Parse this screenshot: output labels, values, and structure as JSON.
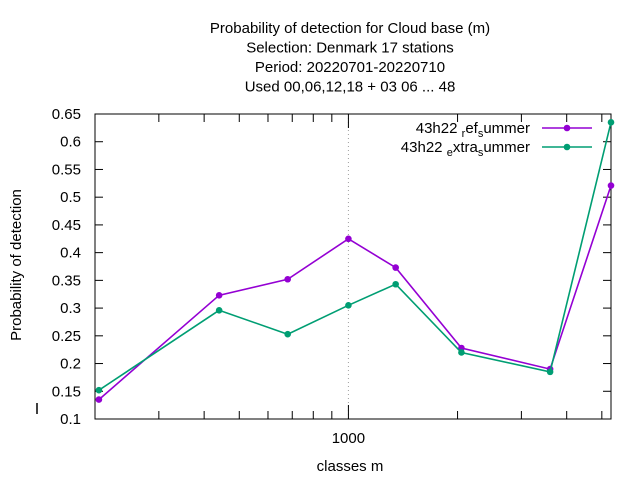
{
  "chart_data": {
    "type": "line",
    "title_lines": [
      "Probability of detection  for Cloud base (m)",
      "Selection: Denmark     17 stations",
      "Period: 20220701-20220710",
      "Used  00,06,12,18  + 03 06 ... 48"
    ],
    "xlabel": "classes m",
    "ylabel": "Probability of detection",
    "x_scale": "log",
    "xlim": [
      200,
      5300
    ],
    "ylim": [
      0.1,
      0.65
    ],
    "y_ticks": [
      "0.1",
      "0.15",
      "0.2",
      "0.25",
      "0.3",
      "0.35",
      "0.4",
      "0.45",
      "0.5",
      "0.55",
      "0.6",
      "0.65"
    ],
    "x_tick_label": "1000",
    "grid": "dotted line at x = 1000",
    "legend_position": "top-right",
    "x": [
      205,
      440,
      680,
      1000,
      1350,
      2050,
      3600,
      5300
    ],
    "series": [
      {
        "name_base": "43h22",
        "name_parts": [
          [
            "r",
            "ef"
          ],
          [
            "s",
            "ummer"
          ]
        ],
        "color": "#9400d3",
        "marker": "filled-circle",
        "values": [
          0.135,
          0.323,
          0.352,
          0.425,
          0.373,
          0.228,
          0.19,
          0.521
        ]
      },
      {
        "name_base": "43h22",
        "name_parts": [
          [
            "e",
            "xtra"
          ],
          [
            "s",
            "ummer"
          ]
        ],
        "color": "#009e73",
        "marker": "filled-circle",
        "values": [
          0.152,
          0.296,
          0.253,
          0.305,
          0.343,
          0.22,
          0.185,
          0.635
        ]
      }
    ]
  }
}
